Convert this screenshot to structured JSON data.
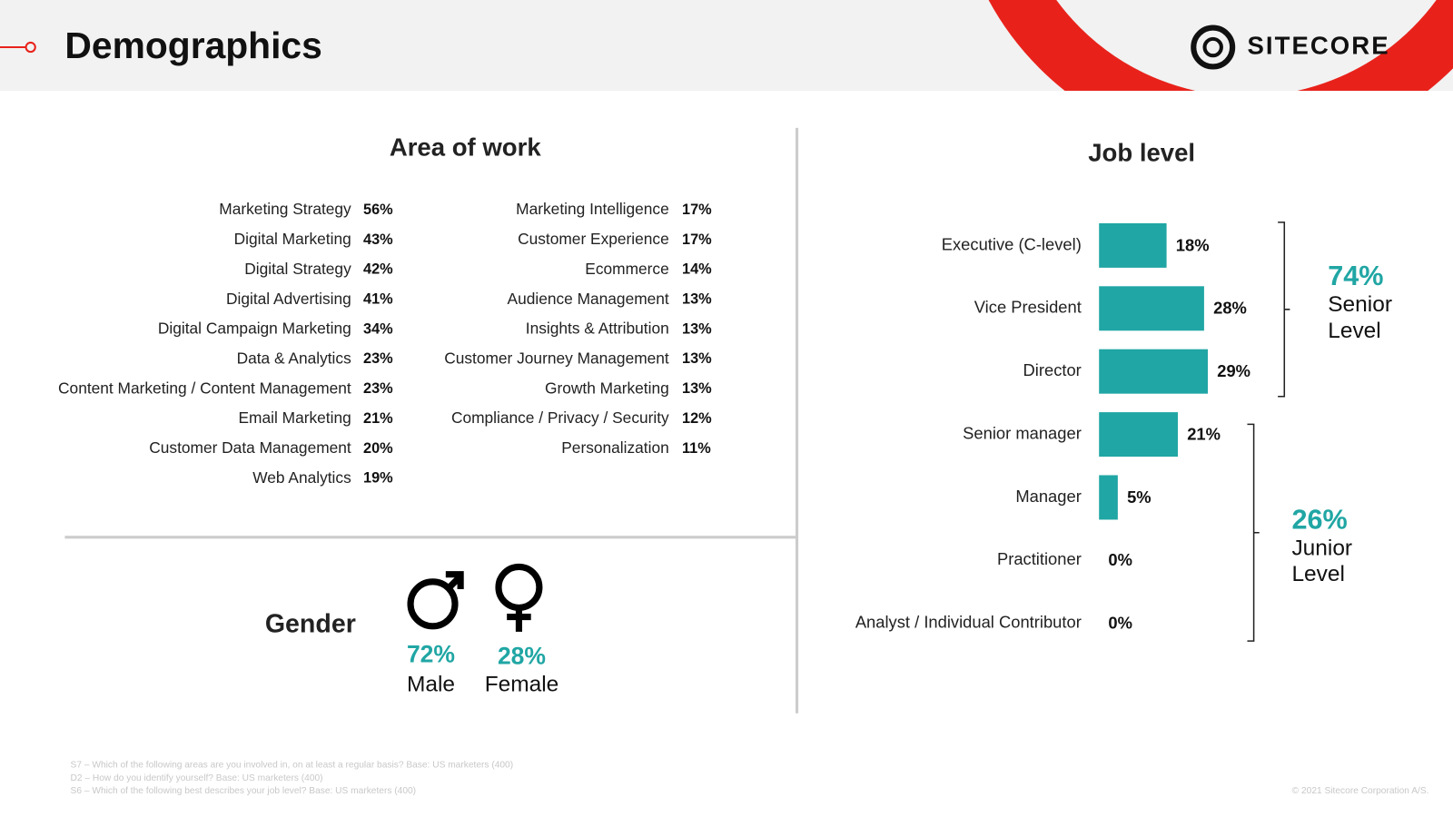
{
  "header": {
    "title": "Demographics",
    "logo": "SITECORE"
  },
  "area_of_work": {
    "title": "Area of work",
    "columns": [
      [
        {
          "label": "Marketing Strategy",
          "value": "56%"
        },
        {
          "label": "Digital Marketing",
          "value": "43%"
        },
        {
          "label": "Digital Strategy",
          "value": "42%"
        },
        {
          "label": "Digital Advertising",
          "value": "41%"
        },
        {
          "label": "Digital Campaign Marketing",
          "value": "34%"
        },
        {
          "label": "Data & Analytics",
          "value": "23%"
        },
        {
          "label": "Content Marketing / Content Management",
          "value": "23%"
        },
        {
          "label": "Email Marketing",
          "value": "21%"
        },
        {
          "label": "Customer Data Management",
          "value": "20%"
        },
        {
          "label": "Web Analytics",
          "value": "19%"
        }
      ],
      [
        {
          "label": "Marketing Intelligence",
          "value": "17%"
        },
        {
          "label": "Customer Experience",
          "value": "17%"
        },
        {
          "label": "Ecommerce",
          "value": "14%"
        },
        {
          "label": "Audience Management",
          "value": "13%"
        },
        {
          "label": "Insights & Attribution",
          "value": "13%"
        },
        {
          "label": "Customer Journey Management",
          "value": "13%"
        },
        {
          "label": "Growth Marketing",
          "value": "13%"
        },
        {
          "label": "Compliance / Privacy / Security",
          "value": "12%"
        },
        {
          "label": "Personalization",
          "value": "11%"
        }
      ]
    ]
  },
  "gender": {
    "title": "Gender",
    "items": [
      {
        "value": "72%",
        "label": "Male"
      },
      {
        "value": "28%",
        "label": "Female"
      }
    ]
  },
  "chart_data": {
    "type": "bar",
    "orientation": "horizontal",
    "title": "Job level",
    "categories": [
      "Executive (C-level)",
      "Vice President",
      "Director",
      "Senior manager",
      "Manager",
      "Practitioner",
      "Analyst / Individual Contributor"
    ],
    "values": [
      18,
      28,
      29,
      21,
      5,
      0,
      0
    ],
    "value_labels": [
      "18%",
      "28%",
      "29%",
      "21%",
      "5%",
      "0%",
      "0%"
    ],
    "color": "#20a6a4",
    "annotations": [
      {
        "value": "74%",
        "lines": [
          "Senior",
          "Level"
        ]
      },
      {
        "value": "26%",
        "lines": [
          "Junior",
          "Level"
        ]
      }
    ]
  },
  "footnotes": [
    "S7 – Which of the following areas are you involved in, on at least a regular basis? Base: US marketers (400)",
    "D2 – How do you identify yourself? Base: US marketers (400)",
    "S6 – Which of the following best describes your job level? Base: US marketers (400)"
  ],
  "copyright": "© 2021 Sitecore Corporation A/S."
}
